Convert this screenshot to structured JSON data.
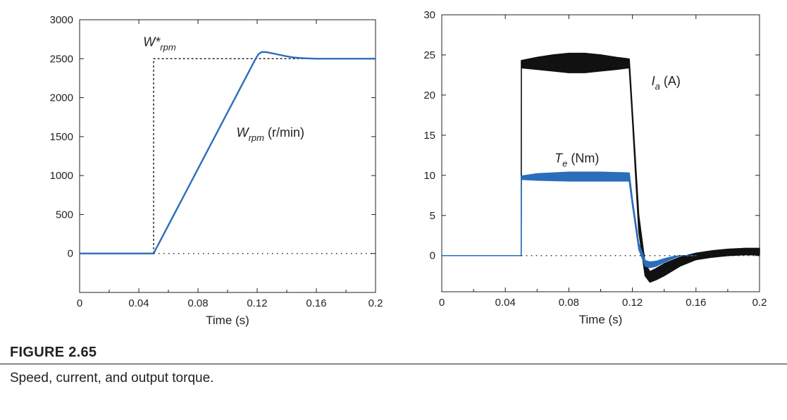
{
  "chart_data": [
    {
      "type": "line",
      "xlabel": "Time (s)",
      "ylabel": "",
      "xlim": [
        0,
        0.2
      ],
      "ylim": [
        -500,
        3000
      ],
      "xticks": [
        0,
        0.04,
        0.08,
        0.12,
        0.16,
        0.2
      ],
      "xtick_labels": [
        "0",
        "0.04",
        "0.08",
        "0.12",
        "0.16",
        "0.2"
      ],
      "yticks": [
        0,
        500,
        1000,
        1500,
        2000,
        2500,
        3000
      ],
      "ytick_labels": [
        "0",
        "500",
        "1000",
        "1500",
        "2000",
        "2500",
        "3000"
      ],
      "grid": false,
      "series": [
        {
          "name": "W*rpm",
          "style": "dashed",
          "color": "#000000",
          "x": [
            0.05,
            0.05,
            0.2
          ],
          "y": [
            0,
            2500,
            2500
          ]
        },
        {
          "name": "Wrpm (r/min)",
          "style": "solid",
          "color": "#2a6ebb",
          "x": [
            0,
            0.05,
            0.119,
            0.121,
            0.123,
            0.126,
            0.13,
            0.135,
            0.14,
            0.145,
            0.15,
            0.155,
            0.16,
            0.17,
            0.2
          ],
          "y": [
            0,
            0,
            2500,
            2560,
            2585,
            2585,
            2570,
            2550,
            2530,
            2515,
            2508,
            2503,
            2500,
            2500,
            2500
          ]
        },
        {
          "name": "zero",
          "style": "dotted",
          "color": "#000000",
          "x": [
            0.05,
            0.2
          ],
          "y": [
            0,
            0
          ]
        }
      ],
      "annotations": [
        {
          "main": "W*",
          "sub": "rpm",
          "after": "",
          "x": 0.043,
          "y": 2660
        },
        {
          "main": "W",
          "sub": "rpm",
          "after": " (r/min)",
          "x": 0.106,
          "y": 1500
        }
      ]
    },
    {
      "type": "line",
      "xlabel": "Time (s)",
      "ylabel": "",
      "xlim": [
        0,
        0.2
      ],
      "ylim": [
        -4.5,
        30
      ],
      "xticks": [
        0,
        0.04,
        0.08,
        0.12,
        0.16,
        0.2
      ],
      "xtick_labels": [
        "0",
        "0.04",
        "0.08",
        "0.12",
        "0.16",
        "0.2"
      ],
      "yticks": [
        0,
        5,
        10,
        15,
        20,
        25,
        30
      ],
      "ytick_labels": [
        "0",
        "5",
        "10",
        "15",
        "20",
        "25",
        "30"
      ],
      "grid": false,
      "series": [
        {
          "name": "Ia (A)",
          "style": "band",
          "color": "#111111",
          "x": [
            0,
            0.05,
            0.0501,
            0.06,
            0.07,
            0.08,
            0.09,
            0.1,
            0.11,
            0.118,
            0.12,
            0.124,
            0.128,
            0.131,
            0.135,
            0.14,
            0.15,
            0.16,
            0.17,
            0.18,
            0.19,
            0.2
          ],
          "upper": [
            0,
            0,
            24.3,
            24.7,
            25,
            25.2,
            25.2,
            25,
            24.7,
            24.5,
            18,
            5,
            -1,
            -2,
            -1.6,
            -1,
            -0.2,
            0.3,
            0.6,
            0.8,
            0.9,
            0.9
          ],
          "lower": [
            0,
            0,
            23.4,
            23.2,
            23,
            22.8,
            22.8,
            23,
            23.2,
            23.4,
            17,
            3,
            -2.5,
            -3.3,
            -3,
            -2.5,
            -1.3,
            -0.5,
            -0.2,
            0,
            0.1,
            0.1
          ]
        },
        {
          "name": "Te (Nm)",
          "style": "band",
          "color": "#2a6ebb",
          "x": [
            0,
            0.05,
            0.0501,
            0.06,
            0.08,
            0.1,
            0.118,
            0.12,
            0.124,
            0.128,
            0.131,
            0.135,
            0.14,
            0.145,
            0.15,
            0.16
          ],
          "upper": [
            0,
            0,
            9.9,
            10.2,
            10.4,
            10.4,
            10.3,
            7,
            1.5,
            -0.6,
            -0.8,
            -0.7,
            -0.4,
            -0.15,
            0,
            0
          ],
          "lower": [
            0,
            0,
            9.5,
            9.4,
            9.3,
            9.3,
            9.3,
            6.3,
            0.8,
            -1.3,
            -1.5,
            -1.3,
            -0.8,
            -0.4,
            0,
            0
          ]
        },
        {
          "name": "zero",
          "style": "dotted",
          "color": "#000000",
          "x": [
            0.05,
            0.2
          ],
          "y": [
            0,
            0
          ]
        }
      ],
      "annotations": [
        {
          "main": "I",
          "sub": "a",
          "after": " (A)",
          "x": 0.132,
          "y": 21.2
        },
        {
          "main": "T",
          "sub": "e",
          "after": " (Nm)",
          "x": 0.071,
          "y": 11.6
        }
      ]
    }
  ],
  "figure": {
    "label": "FIGURE 2.65",
    "caption": "Speed, current, and output torque."
  }
}
